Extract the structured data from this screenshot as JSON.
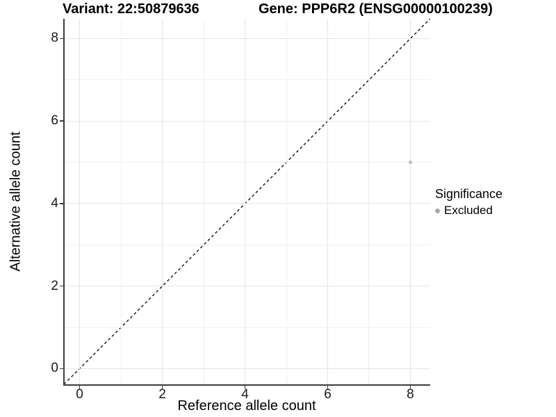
{
  "chart_data": {
    "type": "scatter",
    "title_left": "Variant: 22:50879636",
    "title_right": "Gene: PPP6R2 (ENSG00000100239)",
    "xlabel": "Reference allele count",
    "ylabel": "Alternative allele count",
    "xlim": [
      -0.38,
      8.48
    ],
    "ylim": [
      -0.38,
      8.48
    ],
    "x_major_ticks": [
      0,
      2,
      4,
      6,
      8
    ],
    "y_major_ticks": [
      0,
      2,
      4,
      6,
      8
    ],
    "x_minor_ticks": [
      1,
      3,
      5,
      7
    ],
    "y_minor_ticks": [
      1,
      3,
      5,
      7
    ],
    "grid": "major and minor gridlines, white background",
    "series": [
      {
        "name": "Excluded",
        "color": "#bcbcbc",
        "points": [
          {
            "x": 8,
            "y": 5
          }
        ]
      }
    ],
    "reference_line": {
      "slope": 1,
      "intercept": 0,
      "line_style": "dashed",
      "color": "#000000"
    },
    "legend": {
      "title": "Significance",
      "position": "right",
      "items": [
        {
          "label": "Excluded",
          "color": "#a9a9a9",
          "marker": "circle"
        }
      ]
    },
    "style_colors": {
      "grid_major": "#e5e5e5",
      "grid_minor": "#f0f0f0",
      "axis_line": "#3c3c3c",
      "tick_label_color": "#1a1a1a",
      "point_color": "#bcbcbc"
    }
  }
}
